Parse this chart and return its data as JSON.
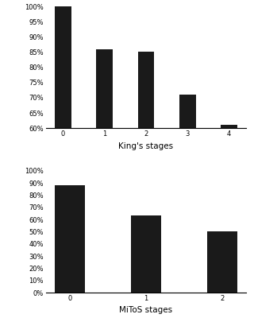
{
  "kings_categories": [
    "0",
    "1",
    "2",
    "3",
    "4"
  ],
  "kings_values": [
    1.0,
    0.86,
    0.85,
    0.71,
    0.61
  ],
  "kings_xlabel": "King's stages",
  "kings_ylim": [
    0.6,
    1.0
  ],
  "kings_yticks": [
    0.6,
    0.65,
    0.7,
    0.75,
    0.8,
    0.85,
    0.9,
    0.95,
    1.0
  ],
  "mitos_categories": [
    "0",
    "1",
    "2"
  ],
  "mitos_values": [
    0.88,
    0.63,
    0.5
  ],
  "mitos_xlabel": "MiToS stages",
  "mitos_ylim": [
    0.0,
    1.0
  ],
  "mitos_yticks": [
    0.0,
    0.1,
    0.2,
    0.3,
    0.4,
    0.5,
    0.6,
    0.7,
    0.8,
    0.9,
    1.0
  ],
  "bar_color": "#1a1a1a",
  "bar_width": 0.4,
  "bg_color": "#ffffff",
  "tick_fontsize": 6.0,
  "label_fontsize": 7.0,
  "xlabel_fontsize": 7.5
}
